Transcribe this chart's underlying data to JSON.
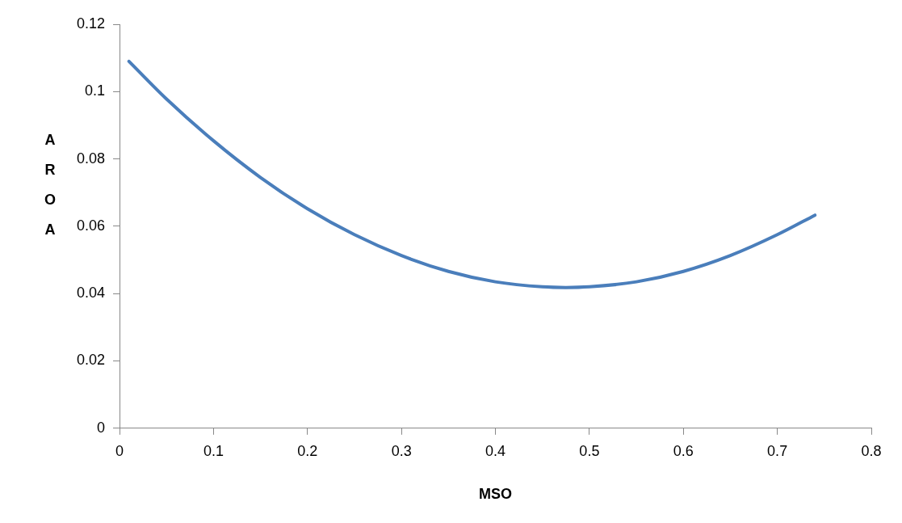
{
  "chart_data": {
    "type": "line",
    "xlabel": "MSO",
    "ylabel": "AROA",
    "x": [
      0.01,
      0.05,
      0.1,
      0.15,
      0.2,
      0.25,
      0.3,
      0.35,
      0.4,
      0.45,
      0.475,
      0.5,
      0.55,
      0.6,
      0.65,
      0.7,
      0.74
    ],
    "series": [
      {
        "color": "#4a7ebb",
        "values": [
          0.109,
          0.0978,
          0.0854,
          0.0745,
          0.0652,
          0.0575,
          0.0513,
          0.0466,
          0.0435,
          0.042,
          0.0418,
          0.042,
          0.0435,
          0.0466,
          0.0513,
          0.0575,
          0.0633
        ]
      }
    ],
    "xlim": [
      0,
      0.8
    ],
    "xticks": [
      0,
      0.1,
      0.2,
      0.3,
      0.4,
      0.5,
      0.6,
      0.7,
      0.8
    ],
    "ylim": [
      0,
      0.12
    ],
    "yticks": [
      0,
      0.02,
      0.04,
      0.06,
      0.08,
      0.1,
      0.12
    ],
    "grid": false,
    "legend": false,
    "marker": "none",
    "line_style": "solid"
  }
}
